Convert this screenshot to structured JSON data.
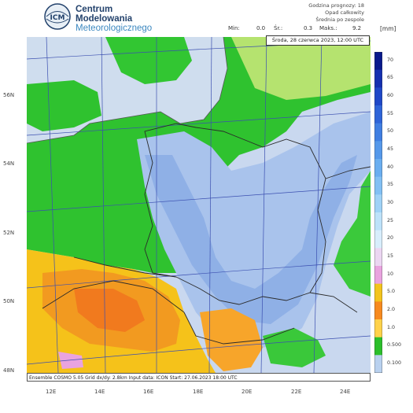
{
  "header": {
    "brand": [
      "Centrum",
      "Modelowania",
      "Meteorologicznego"
    ],
    "logo_text": "ICM",
    "forecast_title": "Godzina prognozy: 18",
    "variable": "Opad całkowity",
    "subtitle": "Średnia po zespole",
    "min_label": "Min:",
    "min_value": "0.0",
    "mean_label": "Śr.:",
    "mean_value": "0.3",
    "max_label": "Maks.:",
    "max_value": "9.2",
    "unit": "[mm]"
  },
  "map": {
    "valid_time": "Środa, 28 czerwca 2023, 12:00 UTC",
    "footer": "Ensemble COSMO 5.05  Grid dx/dy: 2.8km  Input data: ICON  Start: 27.06.2023 18:00 UTC",
    "lat_labels": [
      "56N",
      "54N",
      "52N",
      "50N",
      "48N"
    ],
    "lon_labels": [
      "12E",
      "14E",
      "16E",
      "18E",
      "20E",
      "22E",
      "24E"
    ]
  },
  "colorbar": {
    "ticks": [
      "70",
      "65",
      "60",
      "55",
      "50",
      "45",
      "40",
      "35",
      "30",
      "25",
      "20",
      "15",
      "10",
      "5.0",
      "2.0",
      "1.0",
      "0.500",
      "0.100"
    ],
    "colors": [
      "#0a1a8c",
      "#1530b0",
      "#1f48c8",
      "#2e64d8",
      "#3f7ee2",
      "#5598ea",
      "#6aaef0",
      "#82c0f4",
      "#9fd2f7",
      "#bde2fa",
      "#d8eefc",
      "#ecd6f2",
      "#e9a3df",
      "#f3c41c",
      "#f78a1e",
      "#ffd24a",
      "#2bbf2b",
      "#b9d1ef"
    ]
  }
}
